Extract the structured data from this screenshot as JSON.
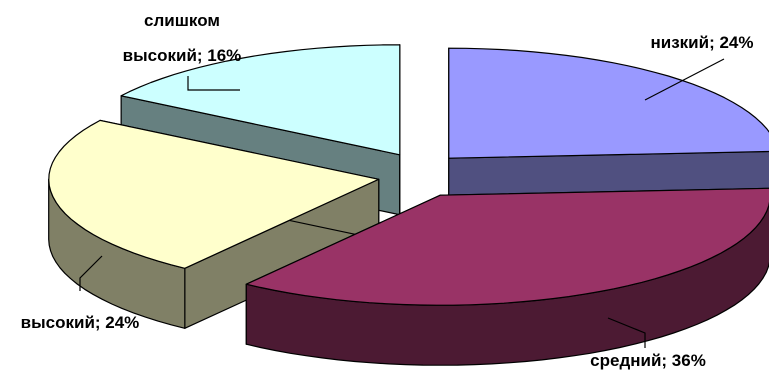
{
  "chart_data": {
    "type": "pie",
    "variant": "3d-exploded",
    "title": "",
    "slices": [
      {
        "label": "низкий; 24%",
        "value": 24,
        "color_top": "#9999FF",
        "color_side": "#505080"
      },
      {
        "label": "средний; 36%",
        "value": 36,
        "color_top": "#993366",
        "color_side": "#4C1A33"
      },
      {
        "label": "высокий; 24%",
        "value": 24,
        "color_top": "#FFFFCC",
        "color_side": "#808066"
      },
      {
        "label_lines": [
          "слишком",
          "высокий; 16%"
        ],
        "value": 16,
        "color_top": "#CCFFFF",
        "color_side": "#668080"
      }
    ],
    "legend": "none"
  }
}
